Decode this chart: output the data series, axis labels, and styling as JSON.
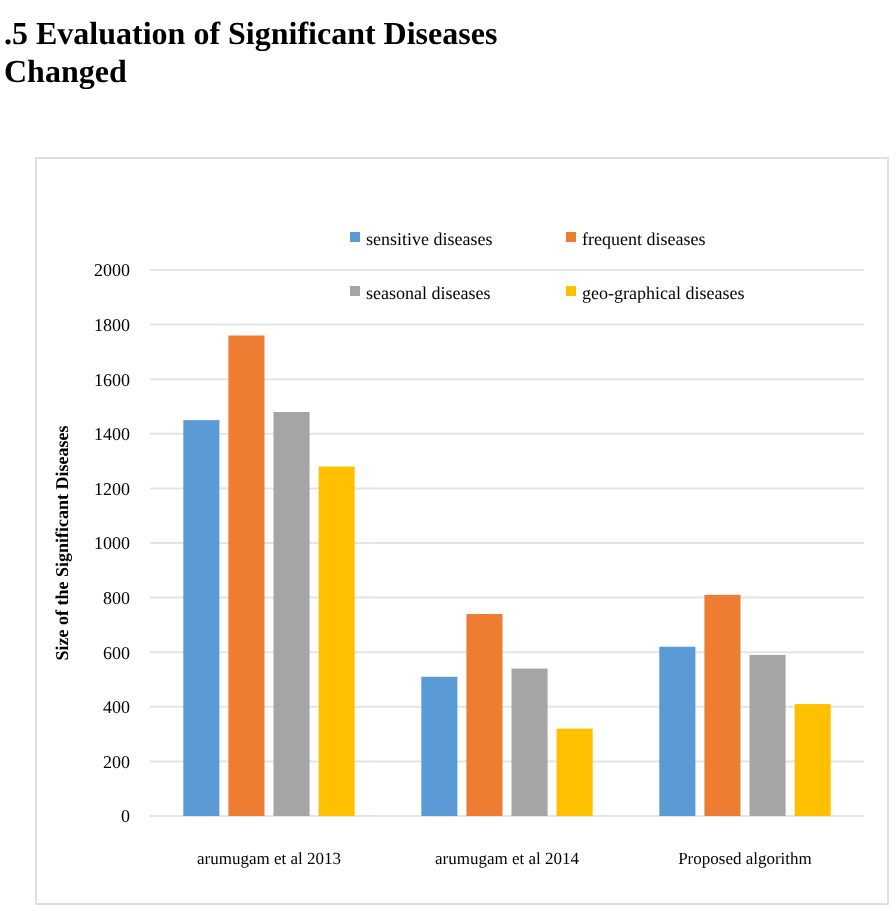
{
  "chart_data": {
    "type": "bar",
    "title": ".5 Evaluation of Significant Diseases Changed",
    "ylabel": "Size of the Significant Diseases",
    "categories": [
      "arumugam et al 2013",
      "arumugam et al 2014",
      "Proposed algorithm"
    ],
    "series": [
      {
        "name": "sensitive diseases",
        "color": "#5b9bd5",
        "values": [
          1450,
          510,
          620
        ]
      },
      {
        "name": "frequent diseases",
        "color": "#ed7d31",
        "values": [
          1760,
          740,
          810
        ]
      },
      {
        "name": "seasonal diseases",
        "color": "#a5a5a5",
        "values": [
          1480,
          540,
          590
        ]
      },
      {
        "name": "geo-graphical diseases",
        "color": "#ffc000",
        "values": [
          1280,
          320,
          410
        ]
      }
    ],
    "ylim": [
      0,
      2000
    ],
    "yticks": [
      0,
      200,
      400,
      600,
      800,
      1000,
      1200,
      1400,
      1600,
      1800,
      2000
    ],
    "grid": "y",
    "legend": "top right"
  }
}
